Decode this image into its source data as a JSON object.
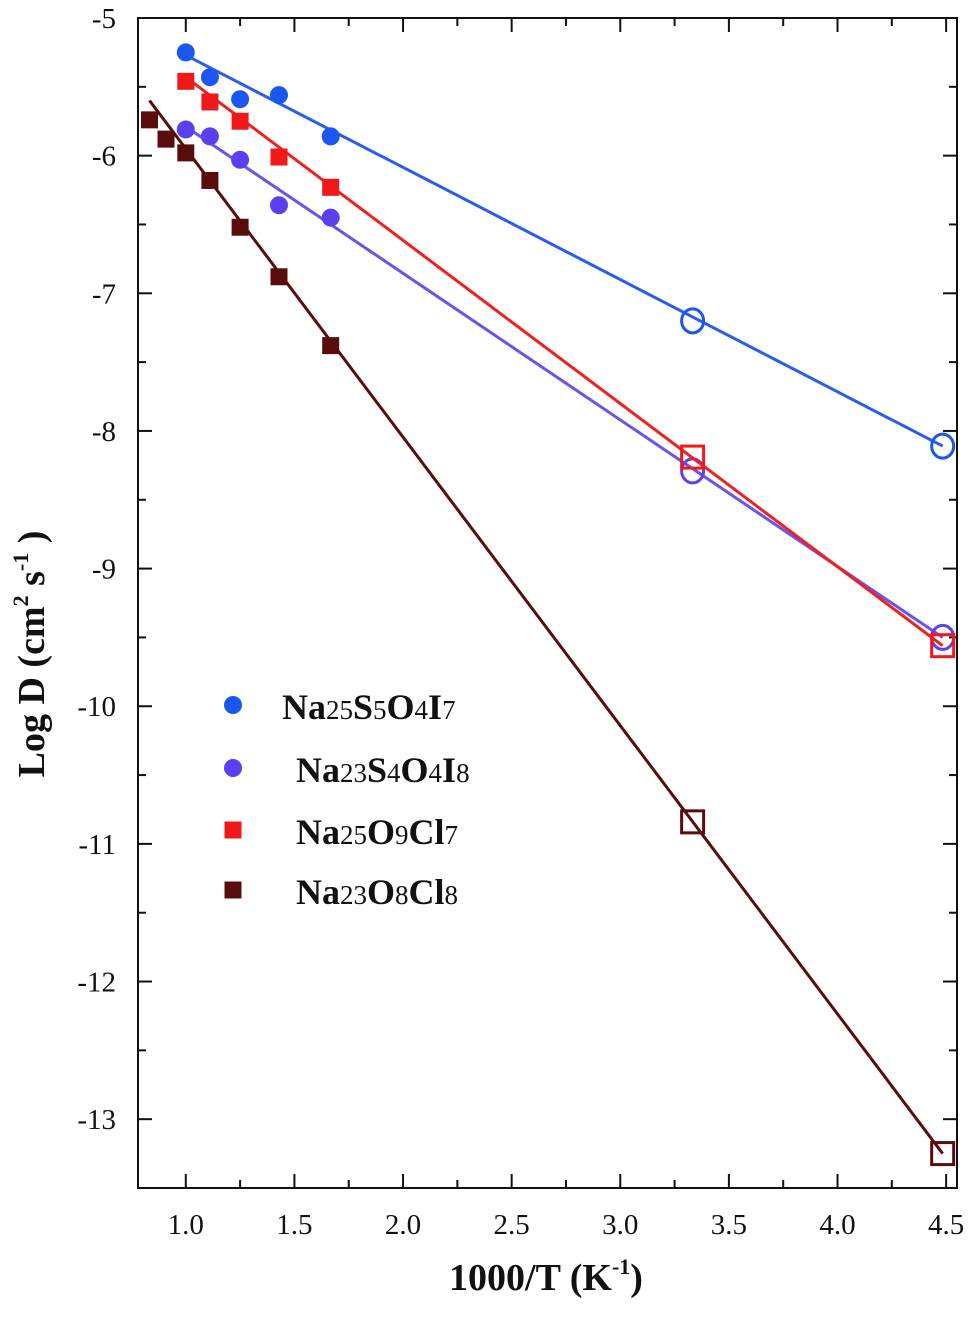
{
  "chart_data": {
    "type": "scatter",
    "xlabel": "1000/T (K",
    "xlabel_sup": "-1",
    "xlabel_end": ")",
    "ylabel_parts": [
      "Log D (cm",
      "2",
      " s",
      "-1",
      " )"
    ],
    "xlim": [
      0.78,
      4.55
    ],
    "ylim": [
      -13.5,
      -5
    ],
    "x_ticks": [
      1.0,
      1.5,
      2.0,
      2.5,
      3.0,
      3.5,
      4.0,
      4.5
    ],
    "x_tick_labels": [
      "1.0",
      "1.5",
      "2.0",
      "2.5",
      "3.0",
      "3.5",
      "4.0",
      "4.5"
    ],
    "y_ticks": [
      -5,
      -6,
      -7,
      -8,
      -9,
      -10,
      -11,
      -12,
      -13
    ],
    "y_tick_labels": [
      "-5",
      "-6",
      "-7",
      "-8",
      "-9",
      "-10",
      "-11",
      "-12",
      "-13"
    ],
    "grid": false,
    "legend_position": "middle-left",
    "series": [
      {
        "name_parts": [
          [
            "Na",
            false
          ],
          [
            "25",
            true
          ],
          [
            "S",
            false
          ],
          [
            "5",
            true
          ],
          [
            "O",
            false
          ],
          [
            "4",
            true
          ],
          [
            "I",
            false
          ],
          [
            "7",
            true
          ]
        ],
        "color": "#1a56f0",
        "line_color": "#2a5cf2",
        "marker": "circle",
        "points": [
          [
            1.0,
            -5.25
          ],
          [
            1.111,
            -5.43
          ],
          [
            1.25,
            -5.59
          ],
          [
            1.429,
            -5.56
          ],
          [
            1.667,
            -5.86
          ]
        ],
        "extrapolated": [
          [
            3.333,
            -7.2
          ],
          [
            4.484,
            -8.11
          ]
        ],
        "fit": [
          [
            1.0,
            -5.27
          ],
          [
            4.484,
            -8.11
          ]
        ]
      },
      {
        "name_parts": [
          [
            "Na",
            false
          ],
          [
            "23",
            true
          ],
          [
            "S",
            false
          ],
          [
            "4",
            true
          ],
          [
            "O",
            false
          ],
          [
            "4",
            true
          ],
          [
            "I",
            false
          ],
          [
            "8",
            true
          ]
        ],
        "color": "#5b3ff0",
        "line_color": "#6a52ee",
        "marker": "circle",
        "points": [
          [
            1.0,
            -5.81
          ],
          [
            1.111,
            -5.86
          ],
          [
            1.25,
            -6.03
          ],
          [
            1.429,
            -6.36
          ],
          [
            1.667,
            -6.45
          ]
        ],
        "extrapolated": [
          [
            3.333,
            -8.29
          ],
          [
            4.484,
            -9.5
          ]
        ],
        "fit": [
          [
            1.0,
            -5.79
          ],
          [
            4.484,
            -9.5
          ]
        ]
      },
      {
        "name_parts": [
          [
            "Na",
            false
          ],
          [
            "25",
            true
          ],
          [
            "O",
            false
          ],
          [
            "9",
            true
          ],
          [
            "Cl",
            false
          ],
          [
            "7",
            true
          ]
        ],
        "color": "#f01818",
        "line_color": "#f02020",
        "marker": "square",
        "points": [
          [
            1.0,
            -5.46
          ],
          [
            1.111,
            -5.61
          ],
          [
            1.25,
            -5.75
          ],
          [
            1.429,
            -6.01
          ],
          [
            1.667,
            -6.23
          ]
        ],
        "extrapolated": [
          [
            3.333,
            -8.19
          ],
          [
            4.484,
            -9.56
          ]
        ],
        "fit": [
          [
            1.0,
            -5.43
          ],
          [
            4.484,
            -9.56
          ]
        ]
      },
      {
        "name_parts": [
          [
            "Na",
            false
          ],
          [
            "23",
            true
          ],
          [
            "O",
            false
          ],
          [
            "8",
            true
          ],
          [
            "Cl",
            false
          ],
          [
            "8",
            true
          ]
        ],
        "color": "#5a0c0c",
        "line_color": "#5a0c0c",
        "marker": "square",
        "points": [
          [
            0.833,
            -5.74
          ],
          [
            0.909,
            -5.88
          ],
          [
            1.0,
            -5.98
          ],
          [
            1.111,
            -6.18
          ],
          [
            1.25,
            -6.52
          ],
          [
            1.429,
            -6.88
          ],
          [
            1.667,
            -7.38
          ]
        ],
        "extrapolated": [
          [
            3.333,
            -10.84
          ],
          [
            4.484,
            -13.25
          ]
        ],
        "fit": [
          [
            0.833,
            -5.6
          ],
          [
            4.484,
            -13.25
          ]
        ]
      }
    ]
  }
}
